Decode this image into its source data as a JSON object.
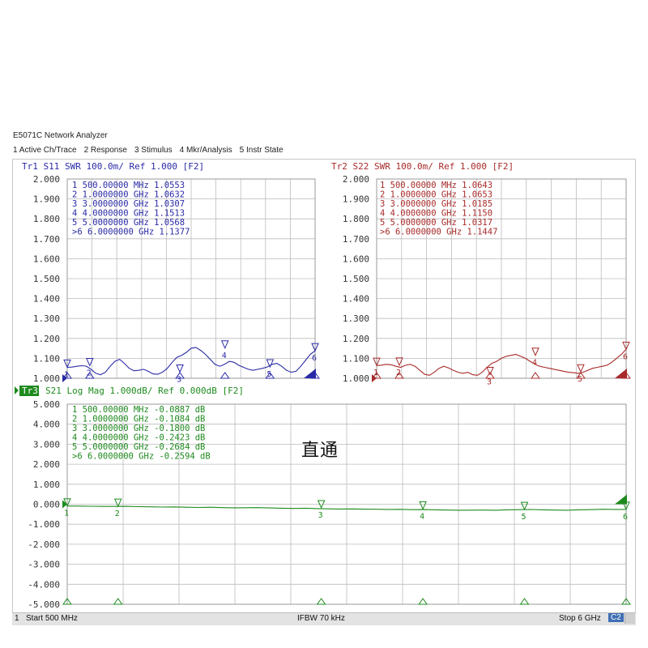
{
  "app": {
    "title": "E5071C Network Analyzer",
    "menu": [
      "1 Active Ch/Trace",
      "2 Response",
      "3 Stimulus",
      "4 Mkr/Analysis",
      "5 Instr State"
    ]
  },
  "colors": {
    "s11": "#2a2aa6",
    "s22": "#a82a2a",
    "s21": "#1e8a1e",
    "grid": "#bcbcbc",
    "active_label_bg": "#1e8a1e"
  },
  "annotation": "直通",
  "status": {
    "channel": "1",
    "start": "Start 500 MHz",
    "ifbw": "IFBW 70 kHz",
    "stop": "Stop 6 GHz",
    "cal": "C2"
  },
  "chart_data": [
    {
      "type": "line",
      "header": "Tr1  S11  SWR 100.0m/  Ref 1.000  [F2]",
      "series": [
        {
          "name": "S11",
          "values": [
            1.055,
            1.056,
            1.06,
            1.063,
            1.061,
            1.045,
            1.025,
            1.018,
            1.03,
            1.06,
            1.085,
            1.095,
            1.075,
            1.05,
            1.038,
            1.04,
            1.045,
            1.035,
            1.022,
            1.02,
            1.031,
            1.05,
            1.08,
            1.105,
            1.115,
            1.13,
            1.151,
            1.155,
            1.14,
            1.12,
            1.095,
            1.07,
            1.06,
            1.07,
            1.085,
            1.08,
            1.065,
            1.055,
            1.045,
            1.04,
            1.045,
            1.05,
            1.057,
            1.07,
            1.075,
            1.06,
            1.04,
            1.03,
            1.035,
            1.06,
            1.09,
            1.12,
            1.138
          ]
        }
      ],
      "ylim": [
        1.0,
        2.0
      ],
      "ytick_labels": [
        "2.000",
        "1.900",
        "1.800",
        "1.700",
        "1.600",
        "1.500",
        "1.400",
        "1.300",
        "1.200",
        "1.100",
        "1.000"
      ],
      "xlim": [
        0.5,
        6.0
      ],
      "markers": [
        {
          "label": "1",
          "freq": "500.00000 MHz",
          "value": "1.0553"
        },
        {
          "label": "2",
          "freq": "1.0000000 GHz",
          "value": "1.0632"
        },
        {
          "label": "3",
          "freq": "3.0000000 GHz",
          "value": "1.0307"
        },
        {
          "label": "4",
          "freq": "4.0000000 GHz",
          "value": "1.1513"
        },
        {
          "label": "5",
          "freq": "5.0000000 GHz",
          "value": "1.0568"
        },
        {
          "label": ">6",
          "freq": "6.0000000 GHz",
          "value": "1.1377"
        }
      ]
    },
    {
      "type": "line",
      "header": "Tr2  S22  SWR 100.0m/  Ref 1.000  [F2]",
      "series": [
        {
          "name": "S22",
          "values": [
            1.064,
            1.066,
            1.07,
            1.068,
            1.06,
            1.055,
            1.065,
            1.07,
            1.06,
            1.04,
            1.02,
            1.015,
            1.03,
            1.05,
            1.06,
            1.052,
            1.04,
            1.03,
            1.025,
            1.03,
            1.018,
            1.015,
            1.03,
            1.055,
            1.075,
            1.085,
            1.1,
            1.11,
            1.115,
            1.12,
            1.11,
            1.1,
            1.085,
            1.07,
            1.06,
            1.055,
            1.05,
            1.045,
            1.04,
            1.035,
            1.03,
            1.028,
            1.025,
            1.03,
            1.04,
            1.05,
            1.055,
            1.06,
            1.065,
            1.08,
            1.1,
            1.12,
            1.145
          ]
        }
      ],
      "ylim": [
        1.0,
        2.0
      ],
      "ytick_labels": [
        "2.000",
        "1.900",
        "1.800",
        "1.700",
        "1.600",
        "1.500",
        "1.400",
        "1.300",
        "1.200",
        "1.100",
        "1.000"
      ],
      "xlim": [
        0.5,
        6.0
      ],
      "markers": [
        {
          "label": "1",
          "freq": "500.00000 MHz",
          "value": "1.0643"
        },
        {
          "label": "2",
          "freq": "1.0000000 GHz",
          "value": "1.0653"
        },
        {
          "label": "3",
          "freq": "3.0000000 GHz",
          "value": "1.0185"
        },
        {
          "label": "4",
          "freq": "4.0000000 GHz",
          "value": "1.1150"
        },
        {
          "label": "5",
          "freq": "5.0000000 GHz",
          "value": "1.0317"
        },
        {
          "label": ">6",
          "freq": "6.0000000 GHz",
          "value": "1.1447"
        }
      ]
    },
    {
      "type": "line",
      "trace_label": "Tr3",
      "header": "S21  Log Mag 1.000dB/  Ref 0.000dB  [F2]",
      "series": [
        {
          "name": "S21",
          "values": [
            -0.089,
            -0.095,
            -0.1,
            -0.108,
            -0.11,
            -0.105,
            -0.12,
            -0.13,
            -0.14,
            -0.135,
            -0.15,
            -0.16,
            -0.15,
            -0.17,
            -0.18,
            -0.175,
            -0.17,
            -0.185,
            -0.2,
            -0.21,
            -0.2,
            -0.22,
            -0.23,
            -0.24,
            -0.235,
            -0.245,
            -0.25,
            -0.26,
            -0.255,
            -0.27,
            -0.268,
            -0.28,
            -0.29,
            -0.3,
            -0.295,
            -0.29,
            -0.3,
            -0.28,
            -0.27,
            -0.265,
            -0.28,
            -0.29,
            -0.3,
            -0.28,
            -0.27,
            -0.25,
            -0.26,
            -0.259
          ]
        }
      ],
      "ylim": [
        -5.0,
        5.0
      ],
      "ytick_labels": [
        "5.000",
        "4.000",
        "3.000",
        "2.000",
        "1.000",
        "0.000",
        "-1.000",
        "-2.000",
        "-3.000",
        "-4.000",
        "-5.000"
      ],
      "xlim": [
        0.5,
        6.0
      ],
      "markers": [
        {
          "label": "1",
          "freq": "500.00000 MHz",
          "value": "-0.0887 dB"
        },
        {
          "label": "2",
          "freq": "1.0000000 GHz",
          "value": "-0.1084 dB"
        },
        {
          "label": "3",
          "freq": "3.0000000 GHz",
          "value": "-0.1800 dB"
        },
        {
          "label": "4",
          "freq": "4.0000000 GHz",
          "value": "-0.2423 dB"
        },
        {
          "label": "5",
          "freq": "5.0000000 GHz",
          "value": "-0.2684 dB"
        },
        {
          "label": ">6",
          "freq": "6.0000000 GHz",
          "value": "-0.2594 dB"
        }
      ]
    }
  ]
}
